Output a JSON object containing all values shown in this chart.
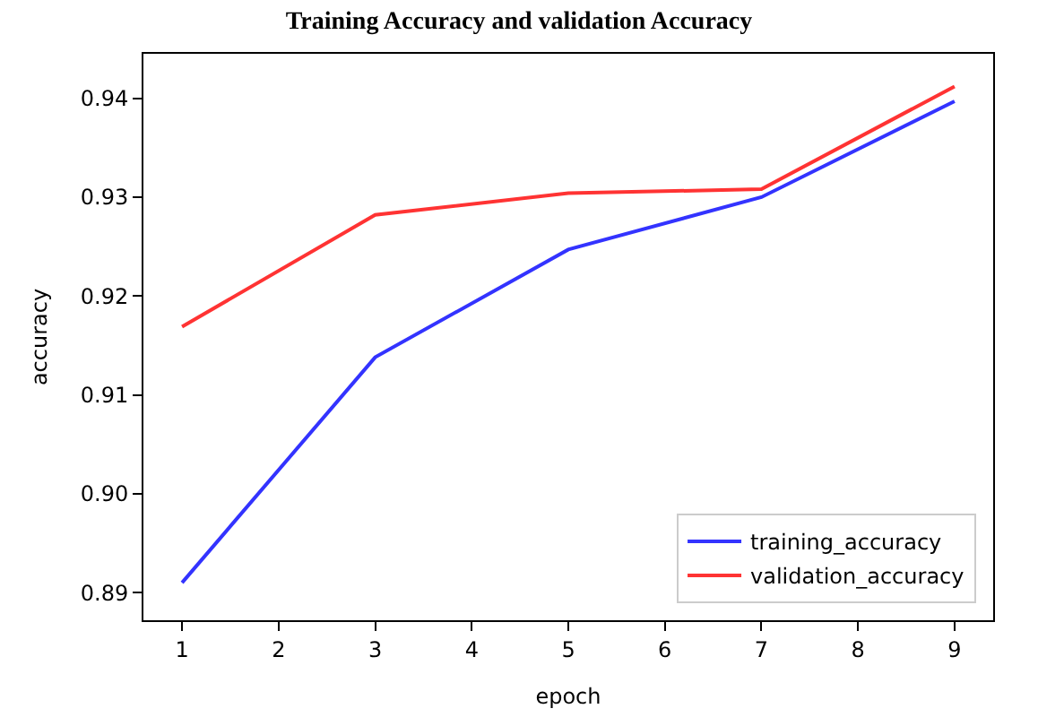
{
  "chart_data": {
    "type": "line",
    "title": "Training Accuracy and validation Accuracy",
    "xlabel": "epoch",
    "ylabel": "accuracy",
    "x": [
      1,
      3,
      5,
      7,
      9
    ],
    "series": [
      {
        "name": "training_accuracy",
        "color": "#3333ff",
        "values": [
          0.891,
          0.9138,
          0.9247,
          0.93,
          0.9397
        ]
      },
      {
        "name": "validation_accuracy",
        "color": "#ff3333",
        "values": [
          0.9169,
          0.9282,
          0.9304,
          0.9308,
          0.9412
        ]
      }
    ],
    "xlim": [
      0.6,
      9.4
    ],
    "xticks": [
      1,
      2,
      3,
      4,
      5,
      6,
      7,
      8,
      9
    ],
    "ylim": [
      0.8872,
      0.9445
    ],
    "yticks": [
      0.89,
      {
        "value": 0.9,
        "label": "0.90"
      },
      0.91,
      0.92,
      0.93,
      0.94
    ],
    "legend": "bottom right",
    "marker": "none",
    "line_style": "solid"
  }
}
